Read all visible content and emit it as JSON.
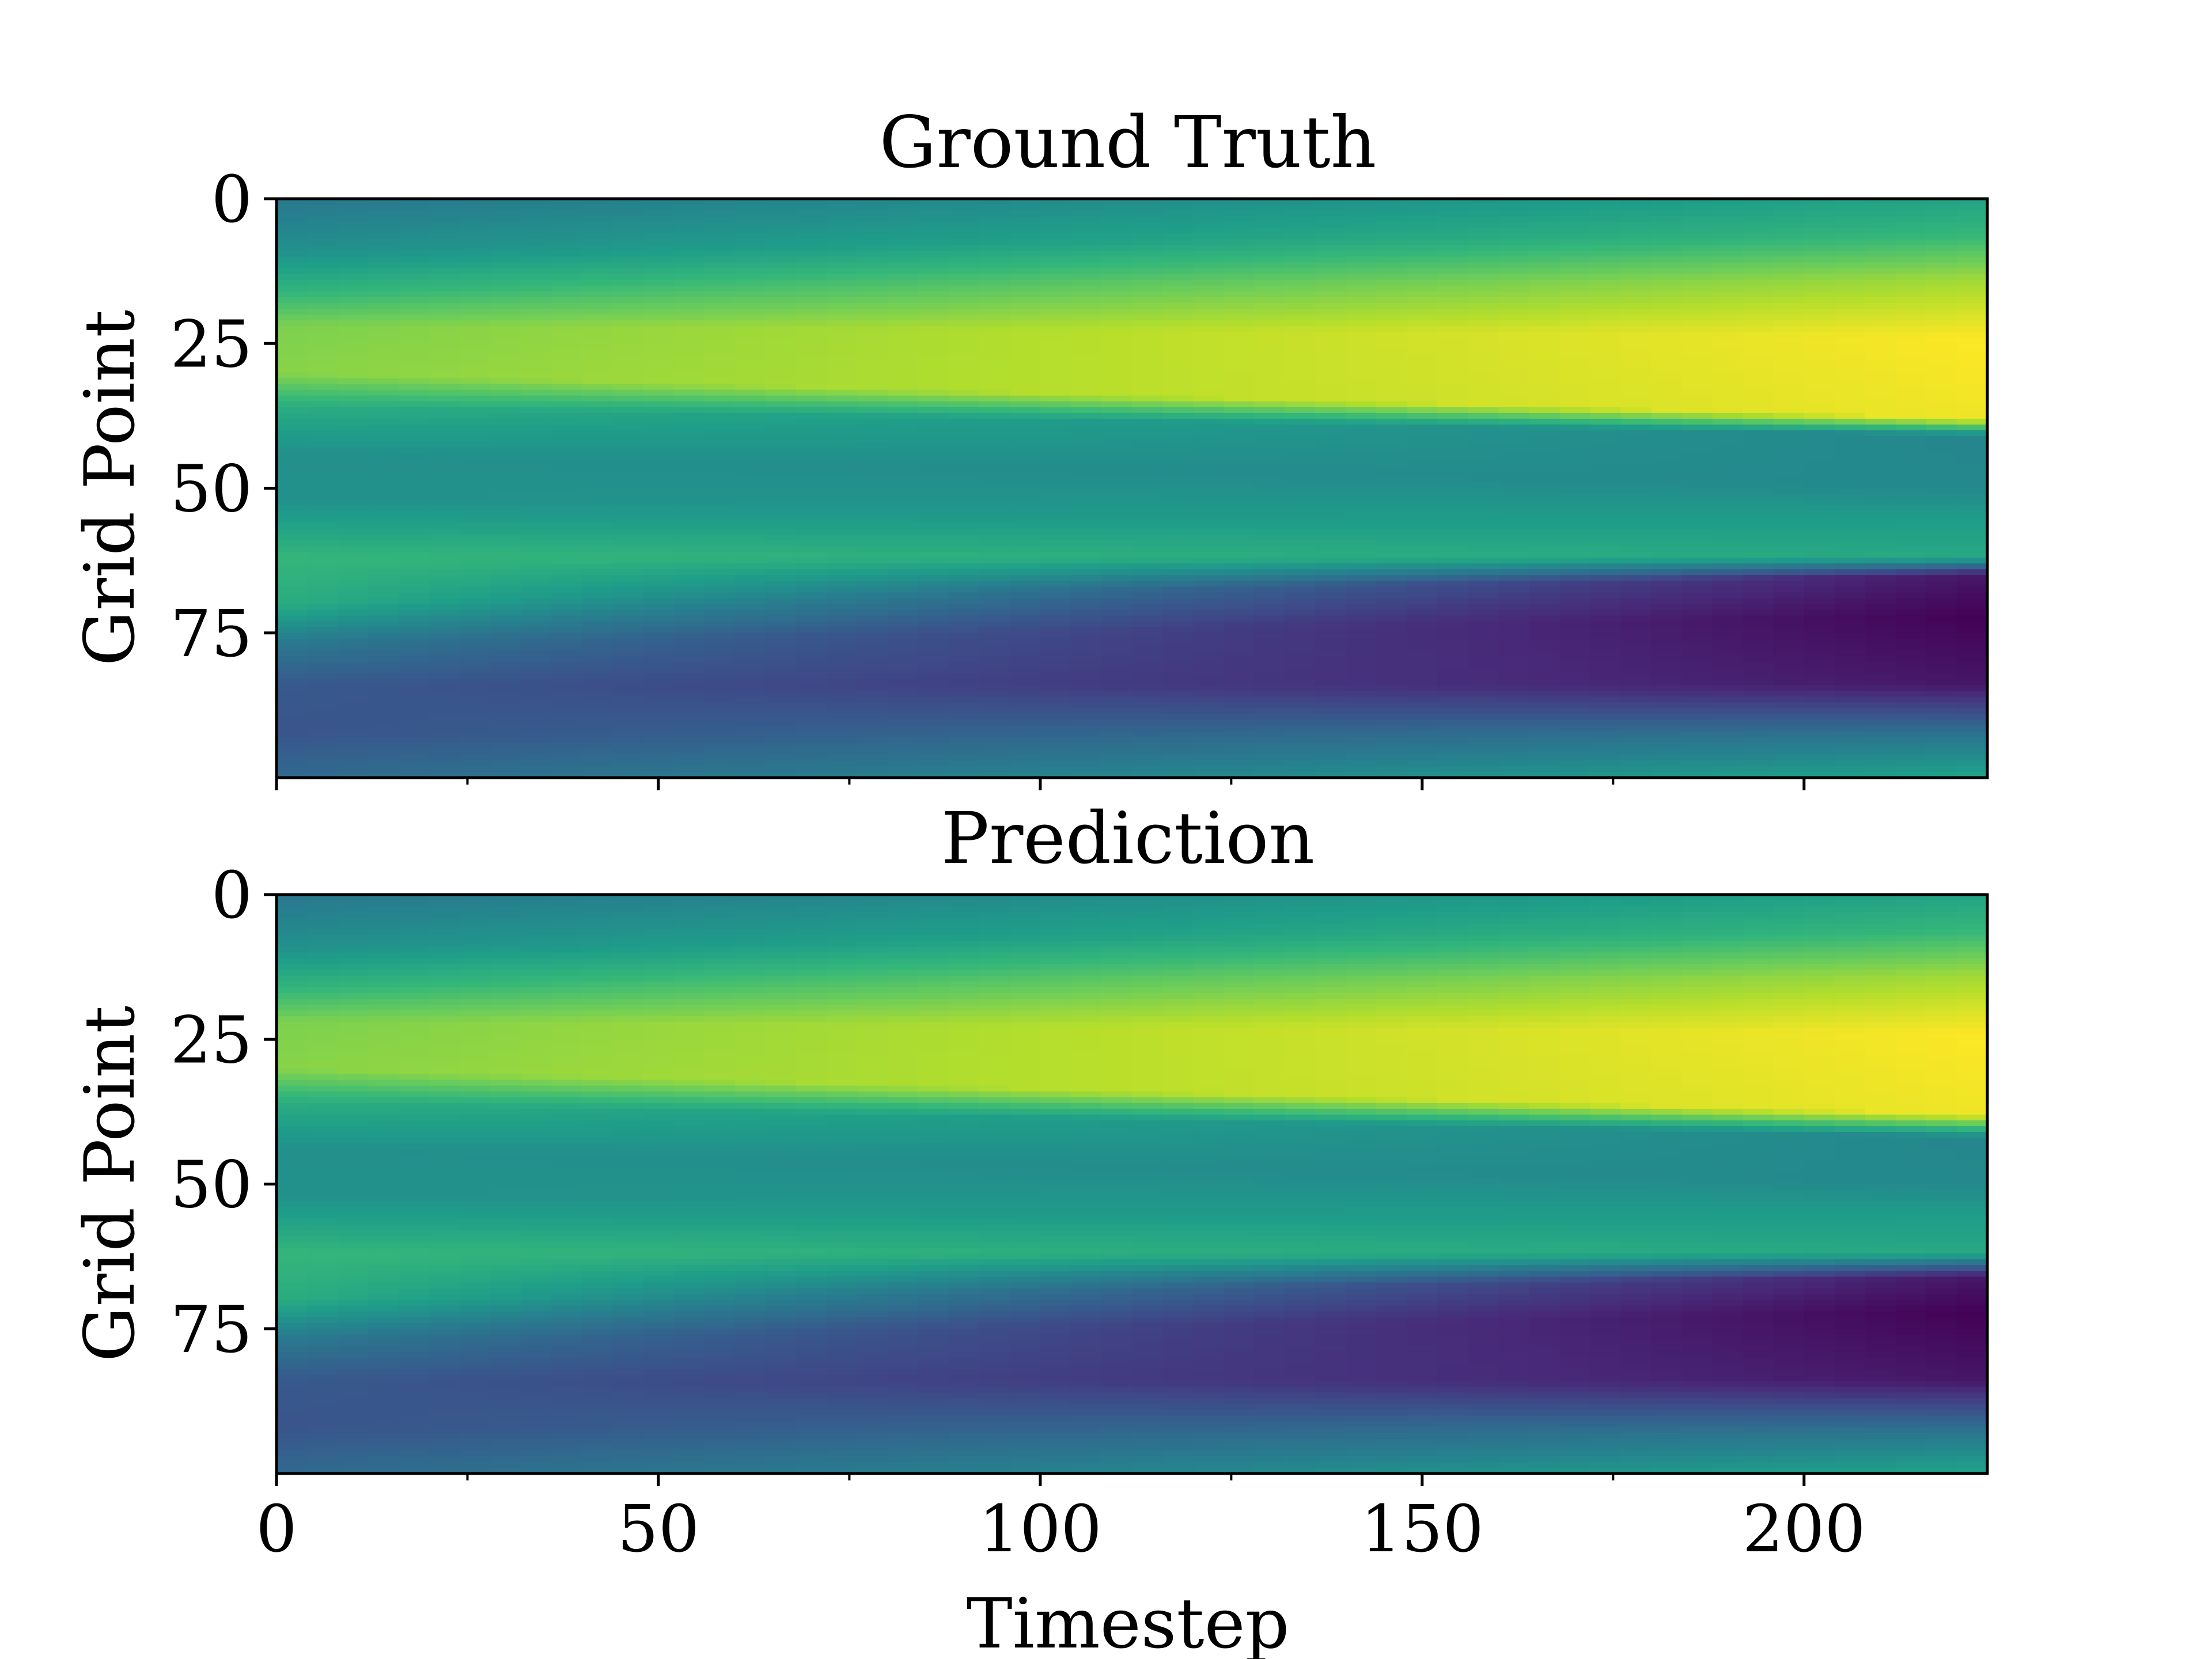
{
  "chart_data": [
    {
      "type": "heatmap",
      "title": "Ground Truth",
      "xlabel": "",
      "ylabel": "Grid Point",
      "xlim": [
        0,
        224
      ],
      "ylim": [
        100,
        0
      ],
      "xticks": [
        0,
        50,
        100,
        150,
        200
      ],
      "yticks": [
        0,
        25,
        50,
        75
      ],
      "colormap": "viridis",
      "field": {
        "description_of_bands": "value along Grid Point (0 top to 100 bottom); band boundaries shift with Timestep",
        "profile_start": [
          {
            "y": 0,
            "v": 0.4
          },
          {
            "y": 9,
            "v": 0.5
          },
          {
            "y": 16,
            "v": 0.65
          },
          {
            "y": 22,
            "v": 0.8
          },
          {
            "y": 30,
            "v": 0.82
          },
          {
            "y": 36,
            "v": 0.62
          },
          {
            "y": 44,
            "v": 0.5
          },
          {
            "y": 52,
            "v": 0.5
          },
          {
            "y": 62,
            "v": 0.66
          },
          {
            "y": 70,
            "v": 0.62
          },
          {
            "y": 77,
            "v": 0.4
          },
          {
            "y": 84,
            "v": 0.28
          },
          {
            "y": 92,
            "v": 0.26
          },
          {
            "y": 100,
            "v": 0.34
          }
        ],
        "profile_end": [
          {
            "y": 0,
            "v": 0.58
          },
          {
            "y": 6,
            "v": 0.66
          },
          {
            "y": 14,
            "v": 0.86
          },
          {
            "y": 24,
            "v": 1.0
          },
          {
            "y": 38,
            "v": 0.98
          },
          {
            "y": 41,
            "v": 0.46
          },
          {
            "y": 50,
            "v": 0.47
          },
          {
            "y": 56,
            "v": 0.56
          },
          {
            "y": 62,
            "v": 0.6
          },
          {
            "y": 65,
            "v": 0.06
          },
          {
            "y": 72,
            "v": 0.0
          },
          {
            "y": 84,
            "v": 0.06
          },
          {
            "y": 93,
            "v": 0.4
          },
          {
            "y": 100,
            "v": 0.58
          }
        ]
      }
    },
    {
      "type": "heatmap",
      "title": "Prediction",
      "xlabel": "Timestep",
      "ylabel": "Grid Point",
      "xlim": [
        0,
        224
      ],
      "ylim": [
        100,
        0
      ],
      "xticks": [
        0,
        50,
        100,
        150,
        200
      ],
      "yticks": [
        0,
        25,
        50,
        75
      ],
      "colormap": "viridis",
      "field": {
        "description_of_bands": "value along Grid Point (0 top to 100 bottom); band boundaries shift with Timestep",
        "profile_start": [
          {
            "y": 0,
            "v": 0.4
          },
          {
            "y": 9,
            "v": 0.5
          },
          {
            "y": 16,
            "v": 0.65
          },
          {
            "y": 22,
            "v": 0.8
          },
          {
            "y": 30,
            "v": 0.82
          },
          {
            "y": 36,
            "v": 0.62
          },
          {
            "y": 44,
            "v": 0.5
          },
          {
            "y": 52,
            "v": 0.5
          },
          {
            "y": 62,
            "v": 0.66
          },
          {
            "y": 70,
            "v": 0.62
          },
          {
            "y": 77,
            "v": 0.4
          },
          {
            "y": 84,
            "v": 0.28
          },
          {
            "y": 92,
            "v": 0.26
          },
          {
            "y": 100,
            "v": 0.34
          }
        ],
        "profile_end": [
          {
            "y": 0,
            "v": 0.58
          },
          {
            "y": 6,
            "v": 0.66
          },
          {
            "y": 14,
            "v": 0.86
          },
          {
            "y": 24,
            "v": 1.0
          },
          {
            "y": 38,
            "v": 0.98
          },
          {
            "y": 42,
            "v": 0.46
          },
          {
            "y": 50,
            "v": 0.47
          },
          {
            "y": 56,
            "v": 0.56
          },
          {
            "y": 62,
            "v": 0.6
          },
          {
            "y": 66,
            "v": 0.06
          },
          {
            "y": 72,
            "v": 0.0
          },
          {
            "y": 84,
            "v": 0.06
          },
          {
            "y": 93,
            "v": 0.4
          },
          {
            "y": 100,
            "v": 0.58
          }
        ]
      }
    }
  ]
}
